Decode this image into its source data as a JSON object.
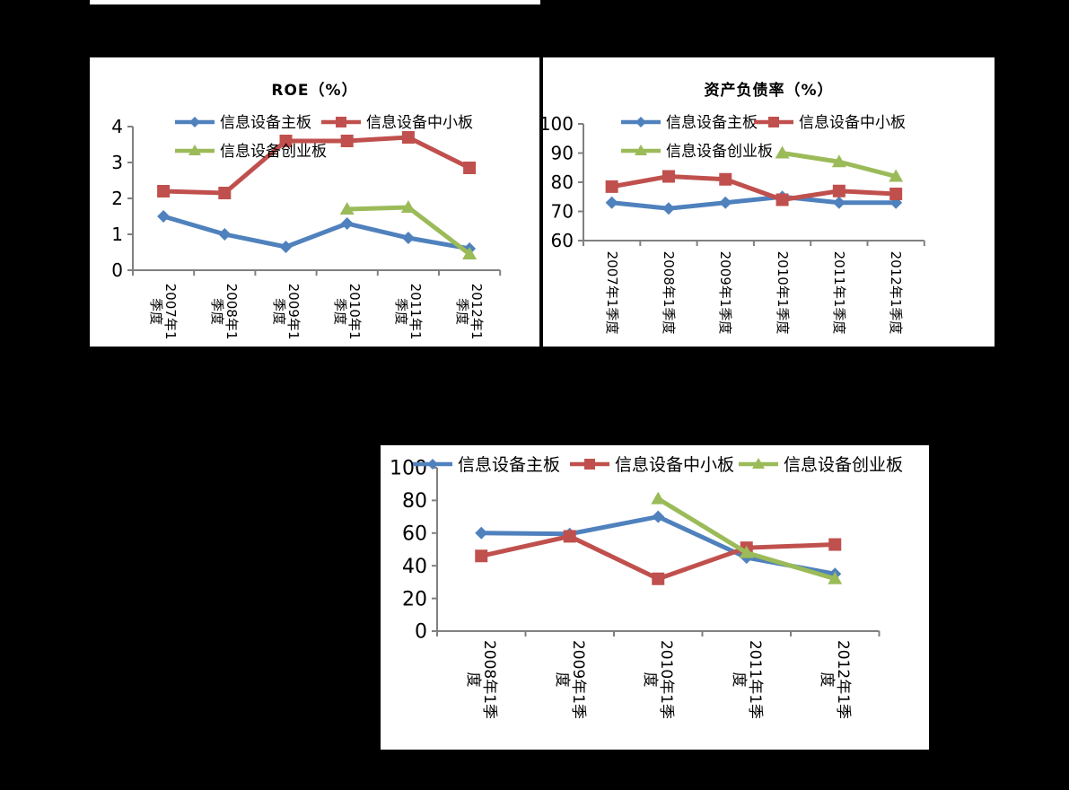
{
  "page": {
    "background": "#000000",
    "panel_color": "#FFFFFF",
    "axis_color": "#808080",
    "text_color": "#000000"
  },
  "chart_data": [
    {
      "type": "line",
      "title": "ROE（%）",
      "categories": [
        "2007年1季度",
        "2008年1季度",
        "2009年1季度",
        "2010年1季度",
        "2011年1季度",
        "2012年1季度"
      ],
      "series": [
        {
          "name": "信息设备主板",
          "color": "#4F81BD",
          "marker": "diamond",
          "values": [
            1.5,
            1.0,
            0.65,
            1.3,
            0.9,
            0.6
          ]
        },
        {
          "name": "信息设备中小板",
          "color": "#C0504D",
          "marker": "square",
          "values": [
            2.2,
            2.15,
            3.6,
            3.6,
            3.7,
            2.85
          ]
        },
        {
          "name": "信息设备创业板",
          "color": "#9BBB59",
          "marker": "triangle",
          "values": [
            null,
            null,
            null,
            1.7,
            1.75,
            0.45
          ]
        }
      ],
      "ylim": [
        0,
        4
      ],
      "yticks": [
        0,
        1,
        2,
        3,
        4
      ],
      "xlabel": "",
      "ylabel": "",
      "grid": false,
      "legend_position": "top-left, two rows inside plot"
    },
    {
      "type": "line",
      "title": "资产负债率（%）",
      "categories": [
        "2007年1季度",
        "2008年1季度",
        "2009年1季度",
        "2010年1季度",
        "2011年1季度",
        "2012年1季度"
      ],
      "series": [
        {
          "name": "信息设备主板",
          "color": "#4F81BD",
          "marker": "diamond",
          "values": [
            73,
            71,
            73,
            75,
            73,
            73
          ]
        },
        {
          "name": "信息设备中小板",
          "color": "#C0504D",
          "marker": "square",
          "values": [
            78.5,
            82,
            81,
            74,
            77,
            76
          ]
        },
        {
          "name": "信息设备创业板",
          "color": "#9BBB59",
          "marker": "triangle",
          "values": [
            null,
            null,
            null,
            90,
            87,
            82
          ]
        }
      ],
      "ylim": [
        60,
        100
      ],
      "yticks": [
        60,
        70,
        80,
        90,
        100
      ],
      "xlabel": "",
      "ylabel": "",
      "grid": false,
      "legend_position": "top-left, two rows inside plot"
    },
    {
      "type": "line",
      "title": "",
      "categories": [
        "2008年1季度",
        "2009年1季度",
        "2010年1季度",
        "2011年1季度",
        "2012年1季度"
      ],
      "series": [
        {
          "name": "信息设备主板",
          "color": "#4F81BD",
          "marker": "diamond",
          "values": [
            60,
            59.5,
            70,
            45,
            35
          ]
        },
        {
          "name": "信息设备中小板",
          "color": "#C0504D",
          "marker": "square",
          "values": [
            46,
            58,
            32,
            51,
            53
          ]
        },
        {
          "name": "信息设备创业板",
          "color": "#9BBB59",
          "marker": "triangle",
          "values": [
            null,
            null,
            81,
            48,
            32
          ]
        }
      ],
      "ylim": [
        0,
        100
      ],
      "yticks": [
        0,
        20,
        40,
        60,
        80,
        100
      ],
      "xlabel": "",
      "ylabel": "",
      "grid": false,
      "legend_position": "top, single row"
    }
  ]
}
